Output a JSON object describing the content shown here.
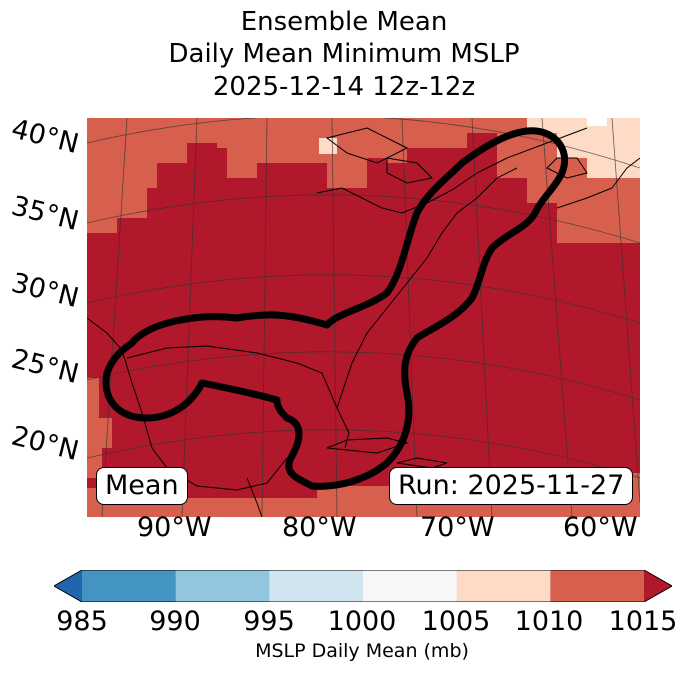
{
  "title": {
    "line1": "Ensemble Mean",
    "line2": "Daily Mean Minimum MSLP",
    "line3": "2025-12-14 12z-12z"
  },
  "map": {
    "lat_labels": [
      "40°N",
      "35°N",
      "30°N",
      "25°N",
      "20°N"
    ],
    "lon_labels": [
      "90°W",
      "80°W",
      "70°W",
      "60°W"
    ],
    "mean_box": "Mean",
    "run_box": "Run: 2025-11-27",
    "colors": {
      "fill_1010_1015": "#b2182b",
      "fill_1005_1010": "#d6604d",
      "fill_1000_1005": "#fddbc7",
      "contour": "#000000",
      "coast": "#000000"
    }
  },
  "colorbar": {
    "ticks": [
      "985",
      "990",
      "995",
      "1000",
      "1005",
      "1010",
      "1015"
    ],
    "label": "MSLP Daily Mean (mb)",
    "colors": [
      "#2166ac",
      "#4393c3",
      "#92c5de",
      "#d1e5f0",
      "#f7f7f7",
      "#fddbc7",
      "#d6604d",
      "#b2182b"
    ]
  }
}
